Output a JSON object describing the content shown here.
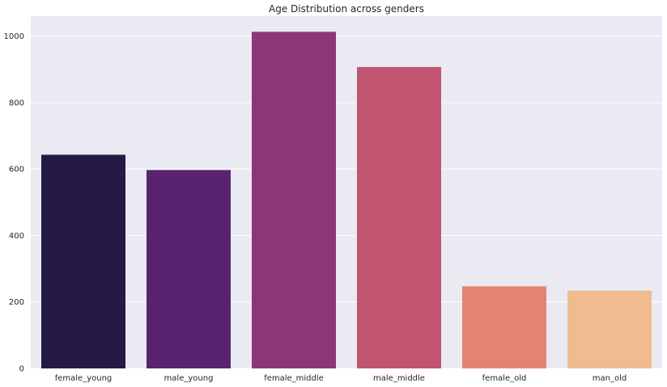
{
  "chart_data": {
    "type": "bar",
    "title": "Age Distribution across genders",
    "xlabel": "",
    "ylabel": "",
    "categories": [
      "female_young",
      "male_young",
      "female_middle",
      "male_middle",
      "female_old",
      "man_old"
    ],
    "values": [
      643,
      597,
      1013,
      907,
      247,
      234
    ],
    "colors": [
      "#251a46",
      "#5a2370",
      "#8b3676",
      "#c1556f",
      "#e58371",
      "#efbb8f"
    ],
    "ylim": [
      0,
      1060
    ],
    "yticks": [
      0,
      200,
      400,
      600,
      800,
      1000
    ],
    "grid": true,
    "background": "#eaeaf2",
    "grid_color": "#ffffff"
  }
}
